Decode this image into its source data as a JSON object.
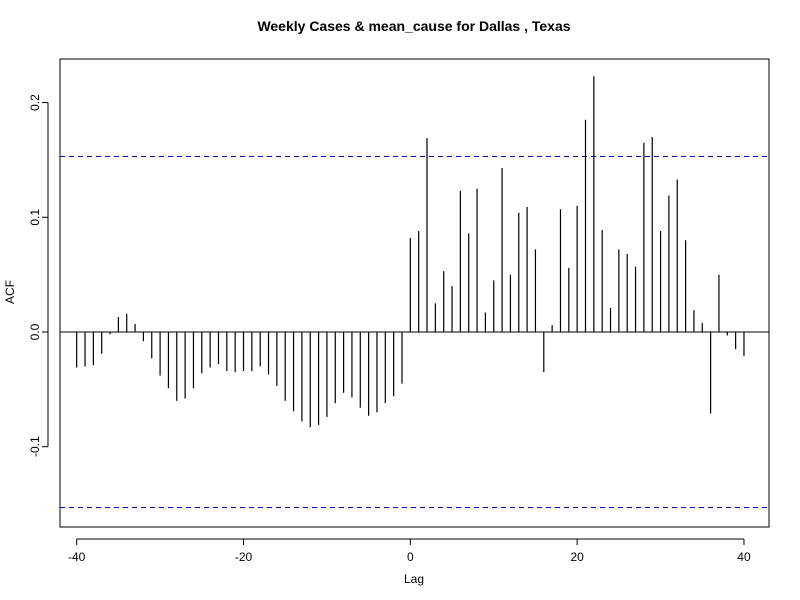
{
  "chart_data": {
    "type": "bar",
    "title": "Weekly Cases & mean_cause for Dallas , Texas",
    "xlabel": "Lag",
    "ylabel": "ACF",
    "xlim": [
      -42,
      43
    ],
    "ylim": [
      -0.17,
      0.238
    ],
    "x_ticks": [
      -40,
      -20,
      0,
      20,
      40
    ],
    "y_ticks": [
      -0.1,
      0.0,
      0.1,
      0.2
    ],
    "x_tick_labels": [
      "-40",
      "-20",
      "0",
      "20",
      "40"
    ],
    "y_tick_labels": [
      "-0.1",
      "0.0",
      "0.1",
      "0.2"
    ],
    "confidence_bounds": [
      0.153,
      -0.153
    ],
    "colors": {
      "bars": "#000000",
      "confidence": "#0000cc",
      "zero_line": "#000000"
    },
    "grid": false,
    "x": [
      -40,
      -39,
      -38,
      -37,
      -36,
      -35,
      -34,
      -33,
      -32,
      -31,
      -30,
      -29,
      -28,
      -27,
      -26,
      -25,
      -24,
      -23,
      -22,
      -21,
      -20,
      -19,
      -18,
      -17,
      -16,
      -15,
      -14,
      -13,
      -12,
      -11,
      -10,
      -9,
      -8,
      -7,
      -6,
      -5,
      -4,
      -3,
      -2,
      -1,
      0,
      1,
      2,
      3,
      4,
      5,
      6,
      7,
      8,
      9,
      10,
      11,
      12,
      13,
      14,
      15,
      16,
      17,
      18,
      19,
      20,
      21,
      22,
      23,
      24,
      25,
      26,
      27,
      28,
      29,
      30,
      31,
      32,
      33,
      34,
      35,
      36,
      37,
      38,
      39,
      40
    ],
    "values": [
      -0.031,
      -0.03,
      -0.029,
      -0.019,
      -0.002,
      0.013,
      0.016,
      0.007,
      -0.008,
      -0.023,
      -0.038,
      -0.049,
      -0.06,
      -0.058,
      -0.049,
      -0.036,
      -0.031,
      -0.028,
      -0.034,
      -0.035,
      -0.034,
      -0.034,
      -0.03,
      -0.037,
      -0.047,
      -0.06,
      -0.069,
      -0.078,
      -0.083,
      -0.081,
      -0.074,
      -0.062,
      -0.053,
      -0.057,
      -0.066,
      -0.073,
      -0.07,
      -0.062,
      -0.056,
      -0.045,
      0.082,
      0.088,
      0.169,
      0.025,
      0.053,
      0.04,
      0.123,
      0.086,
      0.125,
      0.017,
      0.045,
      0.143,
      0.05,
      0.104,
      0.109,
      0.072,
      -0.035,
      0.006,
      0.107,
      0.056,
      0.11,
      0.185,
      0.223,
      0.089,
      0.021,
      0.072,
      0.068,
      0.057,
      0.165,
      0.17,
      0.088,
      0.119,
      0.133,
      0.08,
      0.019,
      0.008,
      -0.071,
      0.05,
      -0.003,
      -0.015,
      -0.021
    ]
  }
}
